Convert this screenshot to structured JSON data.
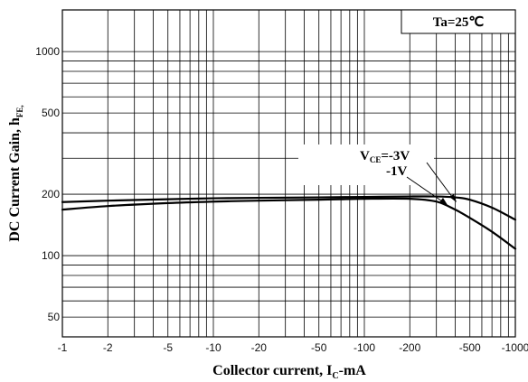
{
  "chart_data": {
    "type": "line",
    "xscale": "log",
    "yscale": "log",
    "xlim": [
      -1,
      -1000
    ],
    "ylim": [
      40,
      1600
    ],
    "grid": true,
    "xlabel": {
      "main": "Collector current, I",
      "sub": "C",
      "unit": "-mA"
    },
    "ylabel": {
      "main": "DC Current Gain, h",
      "sub": "FE,"
    },
    "x_ticks": [
      {
        "value": 1,
        "label": "-1"
      },
      {
        "value": 2,
        "label": "-2"
      },
      {
        "value": 5,
        "label": "-5"
      },
      {
        "value": 10,
        "label": "-10"
      },
      {
        "value": 20,
        "label": "-20"
      },
      {
        "value": 50,
        "label": "-50"
      },
      {
        "value": 100,
        "label": "-100"
      },
      {
        "value": 200,
        "label": "-200"
      },
      {
        "value": 500,
        "label": "-500"
      },
      {
        "value": 1000,
        "label": "-1000"
      }
    ],
    "y_ticks": [
      {
        "value": 50,
        "label": "50"
      },
      {
        "value": 100,
        "label": "100"
      },
      {
        "value": 200,
        "label": "200"
      },
      {
        "value": 500,
        "label": "500"
      },
      {
        "value": 1000,
        "label": "1000"
      }
    ],
    "condition": {
      "text": "Ta=25℃"
    },
    "annotation": {
      "line1_main": "V",
      "line1_sub": "CE",
      "line1_rest": "=-3V",
      "line2": "-1V"
    },
    "series": [
      {
        "name": "VCE=-3V",
        "x": [
          1,
          2,
          5,
          10,
          20,
          50,
          100,
          200,
          300,
          400,
          500,
          700,
          1000
        ],
        "y": [
          183,
          186,
          189,
          191,
          192,
          193,
          194,
          195,
          195,
          193,
          188,
          172,
          150
        ]
      },
      {
        "name": "VCE=-1V",
        "x": [
          1,
          2,
          5,
          10,
          20,
          50,
          100,
          200,
          300,
          400,
          500,
          700,
          1000
        ],
        "y": [
          168,
          175,
          181,
          184,
          186,
          188,
          190,
          190,
          184,
          168,
          153,
          131,
          108
        ]
      }
    ]
  }
}
